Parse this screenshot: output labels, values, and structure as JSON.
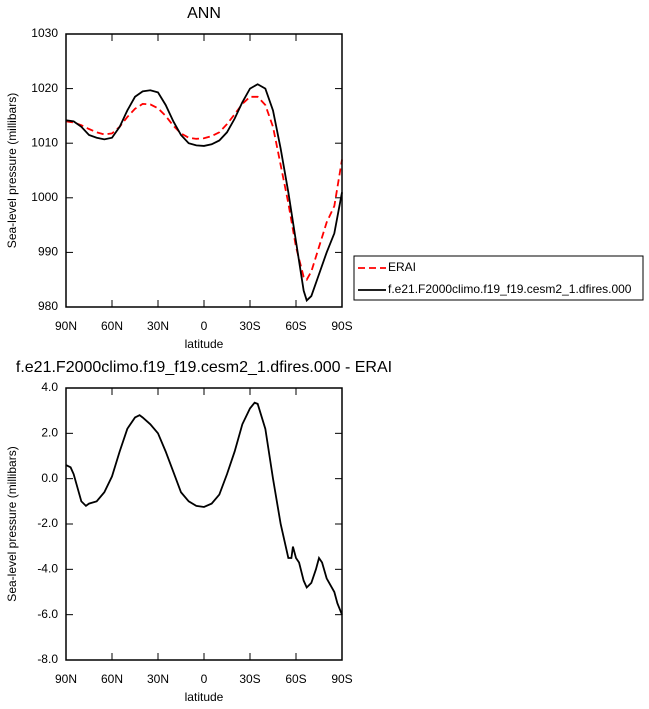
{
  "chart_data": [
    {
      "type": "line",
      "title": "ANN",
      "xlabel": "latitude",
      "ylabel": "Sea-level pressure (millibars)",
      "x": [
        90,
        85,
        80,
        75,
        70,
        65,
        60,
        55,
        50,
        45,
        40,
        35,
        30,
        25,
        20,
        15,
        10,
        5,
        0,
        -5,
        -10,
        -15,
        -20,
        -25,
        -30,
        -35,
        -40,
        -45,
        -50,
        -55,
        -60,
        -65,
        -67,
        -70,
        -75,
        -80,
        -85,
        -90
      ],
      "series": [
        {
          "name": "ERAI",
          "color": "#ff0000",
          "dashed": true,
          "values": [
            1014,
            1013.8,
            1013.3,
            1012.6,
            1012,
            1011.6,
            1011.8,
            1013,
            1014.8,
            1016.3,
            1017.2,
            1017.1,
            1016.4,
            1015,
            1013.2,
            1011.8,
            1011,
            1010.8,
            1010.9,
            1011.3,
            1012,
            1013.5,
            1015.3,
            1017.2,
            1018.5,
            1018.5,
            1017,
            1013,
            1006,
            999,
            991,
            985.5,
            985,
            986.5,
            991,
            995.5,
            998.5,
            1007
          ]
        },
        {
          "name": "f.e21.F2000climo.f19_f19.cesm2_1.dfires.000",
          "color": "#000000",
          "dashed": false,
          "values": [
            1014.2,
            1014,
            1013,
            1011.5,
            1011,
            1010.7,
            1011,
            1013,
            1016,
            1018.5,
            1019.5,
            1019.7,
            1019.3,
            1017,
            1014,
            1011.5,
            1010,
            1009.6,
            1009.5,
            1009.8,
            1010.5,
            1012,
            1014.5,
            1017.5,
            1020,
            1020.8,
            1020,
            1016,
            1009,
            1001,
            992,
            983,
            981.2,
            982,
            986,
            990,
            993.5,
            1001
          ]
        }
      ],
      "xlim": [
        90,
        -90
      ],
      "xticks": [
        {
          "value": 90,
          "label": "90N"
        },
        {
          "value": 60,
          "label": "60N"
        },
        {
          "value": 30,
          "label": "30N"
        },
        0,
        {
          "value": -30,
          "label": "30S"
        },
        {
          "value": -60,
          "label": "60S"
        },
        {
          "value": -90,
          "label": "90S"
        }
      ],
      "ylim": [
        980,
        1030
      ],
      "yticks": [
        980,
        990,
        1000,
        1010,
        1020,
        1030
      ]
    },
    {
      "type": "line",
      "title": "f.e21.F2000climo.f19_f19.cesm2_1.dfires.000 - ERAI",
      "xlabel": "latitude",
      "ylabel": "Sea-level pressure (millibars)",
      "x": [
        90,
        87,
        85,
        80,
        77,
        75,
        70,
        65,
        60,
        55,
        50,
        45,
        42,
        40,
        35,
        30,
        25,
        20,
        15,
        10,
        5,
        0,
        -5,
        -10,
        -15,
        -20,
        -25,
        -30,
        -33,
        -35,
        -40,
        -45,
        -50,
        -55,
        -57,
        -58,
        -60,
        -62,
        -65,
        -67,
        -70,
        -73,
        -75,
        -77,
        -80,
        -85,
        -87,
        -90
      ],
      "color": "#000000",
      "values": [
        0.6,
        0.5,
        0.2,
        -1.0,
        -1.2,
        -1.1,
        -1.0,
        -0.6,
        0.1,
        1.2,
        2.2,
        2.7,
        2.8,
        2.7,
        2.4,
        2.0,
        1.2,
        0.3,
        -0.6,
        -1.0,
        -1.2,
        -1.25,
        -1.1,
        -0.7,
        0.2,
        1.2,
        2.4,
        3.1,
        3.35,
        3.3,
        2.2,
        0.0,
        -2.0,
        -3.5,
        -3.5,
        -3.0,
        -3.5,
        -3.7,
        -4.5,
        -4.8,
        -4.6,
        -4.0,
        -3.5,
        -3.7,
        -4.4,
        -5.0,
        -5.5,
        -6.0
      ],
      "xlim": [
        90,
        -90
      ],
      "xticks": [
        {
          "value": 90,
          "label": "90N"
        },
        {
          "value": 60,
          "label": "60N"
        },
        {
          "value": 30,
          "label": "30N"
        },
        0,
        {
          "value": -30,
          "label": "30S"
        },
        {
          "value": -60,
          "label": "60S"
        },
        {
          "value": -90,
          "label": "90S"
        }
      ],
      "ylim": [
        -8,
        4
      ],
      "yticks": [
        {
          "value": -8,
          "label": "-8.0"
        },
        {
          "value": -6,
          "label": "-6.0"
        },
        {
          "value": -4,
          "label": "-4.0"
        },
        {
          "value": -2,
          "label": "-2.0"
        },
        {
          "value": 0,
          "label": "0.0"
        },
        {
          "value": 2,
          "label": "2.0"
        },
        {
          "value": 4,
          "label": "4.0"
        }
      ]
    }
  ]
}
